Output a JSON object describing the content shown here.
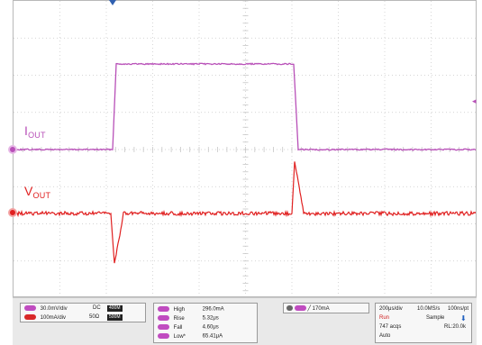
{
  "traces": {
    "iout": {
      "label_main": "I",
      "label_sub": "OUT",
      "color": "#b850b8"
    },
    "vout": {
      "label_main": "V",
      "label_sub": "OUT",
      "color": "#e02020"
    }
  },
  "channel_settings": {
    "ch1": {
      "scale": "30.0mV/div",
      "coupling": "DC",
      "bw": "400M"
    },
    "ch2": {
      "scale": "100mA/div",
      "impedance": "50Ω",
      "bw": "500M"
    }
  },
  "measurements": [
    {
      "name": "High",
      "value": "296.0mA"
    },
    {
      "name": "Rise",
      "value": "5.32μs"
    },
    {
      "name": "Fall",
      "value": "4.60μs"
    },
    {
      "name": "Low*",
      "value": "65.41μA"
    }
  ],
  "trigger": {
    "level": "170mA"
  },
  "timebase": {
    "horizontal": "200μs/div",
    "sample_rate": "10.0MS/s",
    "record_per_pt": "100ns/pt",
    "run_state": "Run",
    "acq_mode": "Sample",
    "acquisitions": "747 acqs",
    "record_length": "RL:20.0k",
    "trigger_mode": "Auto"
  },
  "colors": {
    "iout": "#b850b8",
    "vout": "#e02020",
    "grid": "#c7c7c7"
  }
}
